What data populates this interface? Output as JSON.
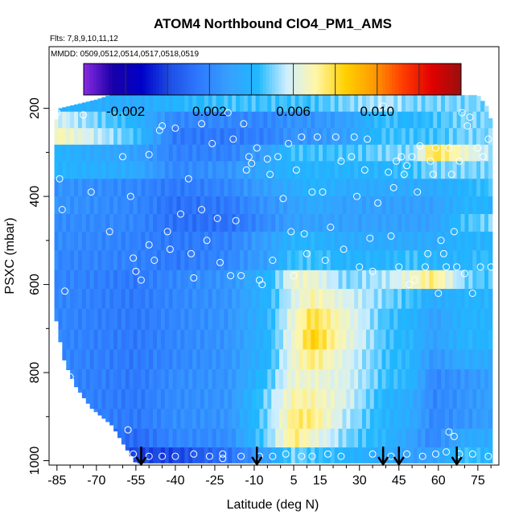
{
  "chart_data": {
    "type": "heatmap",
    "title": "ATOM4 Northbound ClO4_PM1_AMS",
    "subtitle_flights": "Flts: 7,8,9,10,11,12",
    "subtitle_dates": "MMDD: 0509,0512,0514,0517,0518,0519",
    "xlabel": "Latitude (deg N)",
    "ylabel": "PSXC (mbar)",
    "xlim": [
      -88,
      83
    ],
    "ylim": [
      1010,
      60
    ],
    "x_ticks": [
      -85,
      -70,
      -55,
      -40,
      -25,
      -10,
      5,
      15,
      30,
      45,
      60,
      75
    ],
    "x_tick_labels": [
      "-85",
      "-70",
      "-55",
      "-40",
      "-25",
      "-10",
      "5",
      "15",
      "30",
      "45",
      "60",
      "75"
    ],
    "y_ticks": [
      200,
      400,
      600,
      800,
      1000
    ],
    "y_tick_labels": [
      "200",
      "400",
      "600",
      "800",
      "1000"
    ],
    "colorbar": {
      "range": [
        -0.004,
        0.014
      ],
      "tick_values": [
        -0.002,
        0.002,
        0.006,
        0.01
      ],
      "tick_labels": [
        "-0.002",
        "0.002",
        "0.006",
        "0.010"
      ],
      "colors": [
        "#8a2be2",
        "#1a00a8",
        "#0000c8",
        "#1e50e6",
        "#2f7bff",
        "#36a0ff",
        "#1fb8ff",
        "#cfefff",
        "#fff6a8",
        "#ffd200",
        "#ff9a00",
        "#ff3c00",
        "#e00000",
        "#9a1010"
      ]
    },
    "heatmap": {
      "lat_range": [
        -86,
        80
      ],
      "pressure_levels": [
        190,
        225,
        265,
        300,
        340,
        380,
        420,
        460,
        500,
        545,
        590,
        630,
        680,
        725,
        770,
        815,
        860,
        905,
        950,
        990
      ],
      "value_points": [
        {
          "lat": -86,
          "values": [
            0.004,
            0.006,
            0.007,
            0.004,
            0.004,
            0.0025,
            0.0025,
            0.0022,
            0.0022,
            0.002,
            0.002,
            0.002,
            0.002,
            0.002,
            0.002,
            0.002,
            0.002,
            0.002,
            0.002,
            0.002
          ]
        },
        {
          "lat": -55,
          "values": [
            0.0035,
            0.004,
            0.0045,
            0.003,
            0.0035,
            0.002,
            0.002,
            0.002,
            0.0018,
            0.0018,
            0.0015,
            0.0015,
            0.0015,
            0.0015,
            0.0015,
            0.0015,
            0.0015,
            0.0015,
            0.001,
            0.0
          ]
        },
        {
          "lat": -40,
          "values": [
            0.004,
            0.002,
            0.0015,
            0.0018,
            0.002,
            0.0015,
            0.0012,
            0.0012,
            0.0015,
            0.0015,
            0.002,
            0.002,
            0.002,
            0.002,
            0.002,
            0.0022,
            0.0022,
            0.0022,
            0.002,
            0.0
          ]
        },
        {
          "lat": -20,
          "values": [
            0.0045,
            0.002,
            0.0015,
            0.0018,
            0.0025,
            0.002,
            0.0015,
            0.0012,
            0.0018,
            0.002,
            0.0025,
            0.0025,
            0.0025,
            0.0025,
            0.0025,
            0.0025,
            0.0025,
            0.0025,
            0.0022,
            0.0012
          ]
        },
        {
          "lat": -5,
          "values": [
            0.0045,
            0.002,
            0.0018,
            0.003,
            0.0035,
            0.003,
            0.0025,
            0.0022,
            0.003,
            0.003,
            0.004,
            0.004,
            0.004,
            0.004,
            0.004,
            0.0045,
            0.005,
            0.005,
            0.005,
            0.003
          ]
        },
        {
          "lat": 5,
          "values": [
            0.0045,
            0.0025,
            0.0025,
            0.0045,
            0.004,
            0.0035,
            0.003,
            0.003,
            0.004,
            0.0045,
            0.0065,
            0.006,
            0.0065,
            0.0065,
            0.0065,
            0.0065,
            0.007,
            0.0075,
            0.0075,
            0.005
          ]
        },
        {
          "lat": 12,
          "values": [
            0.0045,
            0.0025,
            0.0025,
            0.0045,
            0.004,
            0.004,
            0.0035,
            0.003,
            0.004,
            0.0045,
            0.0065,
            0.007,
            0.008,
            0.0085,
            0.0075,
            0.0065,
            0.007,
            0.0075,
            0.0065,
            0.0045
          ]
        },
        {
          "lat": 25,
          "values": [
            0.005,
            0.003,
            0.003,
            0.0045,
            0.004,
            0.0035,
            0.003,
            0.003,
            0.0035,
            0.004,
            0.005,
            0.006,
            0.0065,
            0.0065,
            0.006,
            0.006,
            0.006,
            0.0055,
            0.005,
            0.004
          ]
        },
        {
          "lat": 40,
          "values": [
            0.0055,
            0.0045,
            0.0045,
            0.005,
            0.004,
            0.0035,
            0.003,
            0.003,
            0.0035,
            0.004,
            0.0055,
            0.005,
            0.0045,
            0.0045,
            0.0045,
            0.0045,
            0.004,
            0.004,
            0.004,
            0.0035
          ]
        },
        {
          "lat": 50,
          "values": [
            0.005,
            0.004,
            0.0045,
            0.005,
            0.0045,
            0.0035,
            0.003,
            0.003,
            0.0035,
            0.0045,
            0.0065,
            0.0045,
            0.004,
            0.004,
            0.004,
            0.004,
            0.0035,
            0.0035,
            0.003,
            0.003
          ]
        },
        {
          "lat": 58,
          "values": [
            0.005,
            0.0045,
            0.0045,
            0.008,
            0.005,
            0.0035,
            0.003,
            0.003,
            0.0035,
            0.004,
            0.0075,
            0.0035,
            0.003,
            0.003,
            0.0025,
            0.002,
            0.002,
            0.002,
            0.002,
            0.003
          ]
        },
        {
          "lat": 70,
          "values": [
            0.005,
            0.005,
            0.005,
            0.0065,
            0.005,
            0.004,
            0.004,
            0.0045,
            0.004,
            0.004,
            0.005,
            0.004,
            0.004,
            0.004,
            0.0035,
            0.0025,
            0.0025,
            0.0025,
            0.0035,
            0.0045
          ]
        },
        {
          "lat": 80,
          "values": [
            0.005,
            0.005,
            0.005,
            0.0055,
            0.005,
            0.0045,
            0.004,
            0.005,
            0.004,
            0.0045,
            0.0045,
            0.004,
            0.004,
            0.004,
            0.0035,
            0.003,
            0.003,
            0.003,
            0.0035,
            0.004
          ]
        }
      ],
      "lower_edge": [
        {
          "lat": -87,
          "bottom": 640
        },
        {
          "lat": -86,
          "bottom": 660
        },
        {
          "lat": -84,
          "bottom": 720
        },
        {
          "lat": -83,
          "bottom": 760
        },
        {
          "lat": -81,
          "bottom": 790
        },
        {
          "lat": -78,
          "bottom": 830
        },
        {
          "lat": -72,
          "bottom": 880
        },
        {
          "lat": -64,
          "bottom": 920
        },
        {
          "lat": -60,
          "bottom": 960
        },
        {
          "lat": -55,
          "bottom": 1005
        },
        {
          "lat": 80,
          "bottom": 1005
        }
      ],
      "upper_edge": [
        {
          "lat": -86,
          "top": 240
        },
        {
          "lat": -84,
          "top": 200
        },
        {
          "lat": -70,
          "top": 180
        },
        {
          "lat": -65,
          "top": 170
        },
        {
          "lat": 75,
          "top": 170
        },
        {
          "lat": 79,
          "top": 200
        },
        {
          "lat": 80,
          "top": 230
        }
      ]
    },
    "observations": [
      [
        -85,
        210
      ],
      [
        -84,
        360
      ],
      [
        -83,
        430
      ],
      [
        -82,
        615
      ],
      [
        -80,
        810
      ],
      [
        -75,
        215
      ],
      [
        -72,
        390
      ],
      [
        -65,
        480
      ],
      [
        -60,
        310
      ],
      [
        -58,
        930
      ],
      [
        -57,
        400
      ],
      [
        -56,
        540
      ],
      [
        -55,
        570
      ],
      [
        -53,
        590
      ],
      [
        -50,
        305
      ],
      [
        -50,
        510
      ],
      [
        -48,
        545
      ],
      [
        -46,
        250
      ],
      [
        -45,
        240
      ],
      [
        -43,
        480
      ],
      [
        -42,
        520
      ],
      [
        -40,
        245
      ],
      [
        -38,
        440
      ],
      [
        -35,
        360
      ],
      [
        -34,
        530
      ],
      [
        -33,
        585
      ],
      [
        -30,
        235
      ],
      [
        -30,
        430
      ],
      [
        -28,
        500
      ],
      [
        -26,
        280
      ],
      [
        -24,
        450
      ],
      [
        -23,
        550
      ],
      [
        -22,
        985
      ],
      [
        -20,
        210
      ],
      [
        -19,
        580
      ],
      [
        -18,
        270
      ],
      [
        -17,
        455
      ],
      [
        -15,
        580
      ],
      [
        -14,
        235
      ],
      [
        -13,
        340
      ],
      [
        -12,
        310
      ],
      [
        -11,
        325
      ],
      [
        -9,
        290
      ],
      [
        -8,
        590
      ],
      [
        -7,
        600
      ],
      [
        -5,
        315
      ],
      [
        -4,
        350
      ],
      [
        -3,
        545
      ],
      [
        -1,
        310
      ],
      [
        1,
        405
      ],
      [
        3,
        280
      ],
      [
        4,
        480
      ],
      [
        5,
        580
      ],
      [
        6,
        340
      ],
      [
        8,
        265
      ],
      [
        9,
        485
      ],
      [
        10,
        530
      ],
      [
        12,
        390
      ],
      [
        14,
        265
      ],
      [
        16,
        390
      ],
      [
        17,
        545
      ],
      [
        19,
        470
      ],
      [
        21,
        265
      ],
      [
        23,
        320
      ],
      [
        24,
        520
      ],
      [
        27,
        310
      ],
      [
        28,
        265
      ],
      [
        29,
        400
      ],
      [
        30,
        560
      ],
      [
        32,
        340
      ],
      [
        33,
        270
      ],
      [
        34,
        495
      ],
      [
        35,
        570
      ],
      [
        37,
        415
      ],
      [
        39,
        195
      ],
      [
        41,
        345
      ],
      [
        42,
        490
      ],
      [
        43,
        380
      ],
      [
        44,
        320
      ],
      [
        45,
        560
      ],
      [
        46,
        310
      ],
      [
        47,
        350
      ],
      [
        48,
        330
      ],
      [
        49,
        600
      ],
      [
        50,
        310
      ],
      [
        51,
        590
      ],
      [
        52,
        390
      ],
      [
        53,
        285
      ],
      [
        55,
        560
      ],
      [
        56,
        530
      ],
      [
        57,
        320
      ],
      [
        58,
        350
      ],
      [
        59,
        290
      ],
      [
        60,
        620
      ],
      [
        61,
        500
      ],
      [
        62,
        530
      ],
      [
        63,
        560
      ],
      [
        64,
        290
      ],
      [
        65,
        350
      ],
      [
        66,
        480
      ],
      [
        67,
        560
      ],
      [
        68,
        320
      ],
      [
        69,
        210
      ],
      [
        70,
        575
      ],
      [
        71,
        240
      ],
      [
        72,
        220
      ],
      [
        73,
        620
      ],
      [
        75,
        290
      ],
      [
        76,
        560
      ],
      [
        77,
        310
      ],
      [
        79,
        270
      ],
      [
        80,
        560
      ],
      [
        -56,
        985
      ],
      [
        -50,
        990
      ],
      [
        -45,
        990
      ],
      [
        -40,
        990
      ],
      [
        -33,
        985
      ],
      [
        -27,
        990
      ],
      [
        -22,
        995
      ],
      [
        -15,
        990
      ],
      [
        -8,
        990
      ],
      [
        -3,
        990
      ],
      [
        2,
        985
      ],
      [
        8,
        990
      ],
      [
        12,
        990
      ],
      [
        18,
        985
      ],
      [
        23,
        990
      ],
      [
        35,
        985
      ],
      [
        42,
        990
      ],
      [
        48,
        985
      ],
      [
        54,
        990
      ],
      [
        59,
        985
      ],
      [
        63,
        980
      ],
      [
        68,
        985
      ],
      [
        73,
        985
      ],
      [
        79,
        990
      ],
      [
        64,
        935
      ],
      [
        66,
        945
      ]
    ],
    "flight_arrows_lat": [
      -53,
      -9,
      39,
      45,
      67
    ]
  }
}
